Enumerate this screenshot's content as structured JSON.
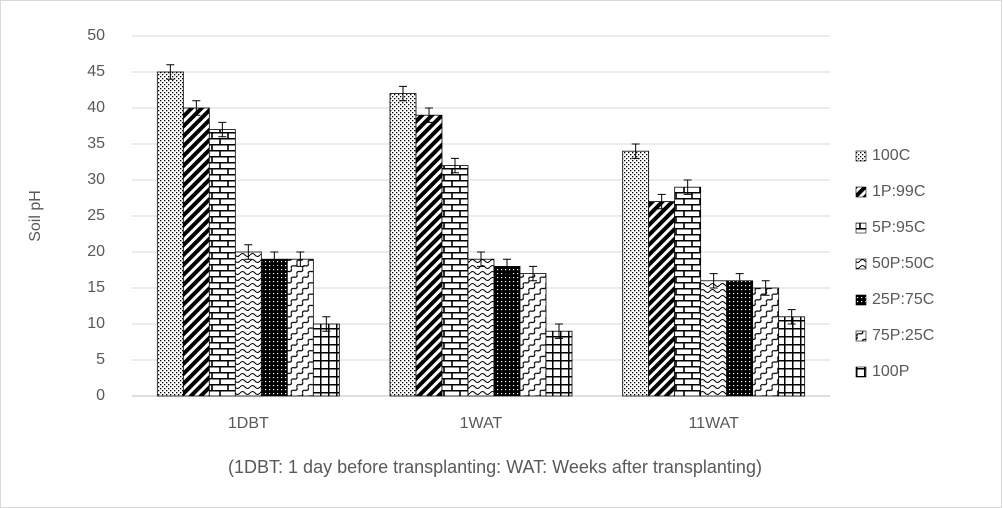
{
  "chart_data": {
    "type": "bar",
    "xlabel": "(1DBT: 1 day before transplanting: WAT: Weeks after transplanting)",
    "ylabel": "Soil pH",
    "categories": [
      "1DBT",
      "1WAT",
      "11WAT"
    ],
    "series": [
      {
        "name": "100C",
        "color": "#000000",
        "values": [
          45,
          42,
          34
        ],
        "errors": [
          1,
          1,
          1
        ]
      },
      {
        "name": "1P:99C",
        "color": "#000000",
        "values": [
          40,
          39,
          27
        ],
        "errors": [
          1,
          1,
          1
        ]
      },
      {
        "name": "5P:95C",
        "color": "#000000",
        "values": [
          37,
          32,
          29
        ],
        "errors": [
          1,
          1,
          1
        ]
      },
      {
        "name": "50P:50C",
        "color": "#000000",
        "values": [
          20,
          19,
          16
        ],
        "errors": [
          1,
          1,
          1
        ]
      },
      {
        "name": "25P:75C",
        "color": "#000000",
        "values": [
          19,
          18,
          16
        ],
        "errors": [
          1,
          1,
          1
        ]
      },
      {
        "name": "75P:25C",
        "color": "#000000",
        "values": [
          19,
          17,
          15
        ],
        "errors": [
          1,
          1,
          1
        ]
      },
      {
        "name": "100P",
        "color": "#000000",
        "values": [
          10,
          9,
          11
        ],
        "errors": [
          1,
          1,
          1
        ]
      }
    ],
    "ylim": [
      0,
      50
    ],
    "yticks": [
      0,
      5,
      10,
      15,
      20,
      25,
      30,
      35,
      40,
      45,
      50
    ],
    "grid": true,
    "legend": "right"
  }
}
